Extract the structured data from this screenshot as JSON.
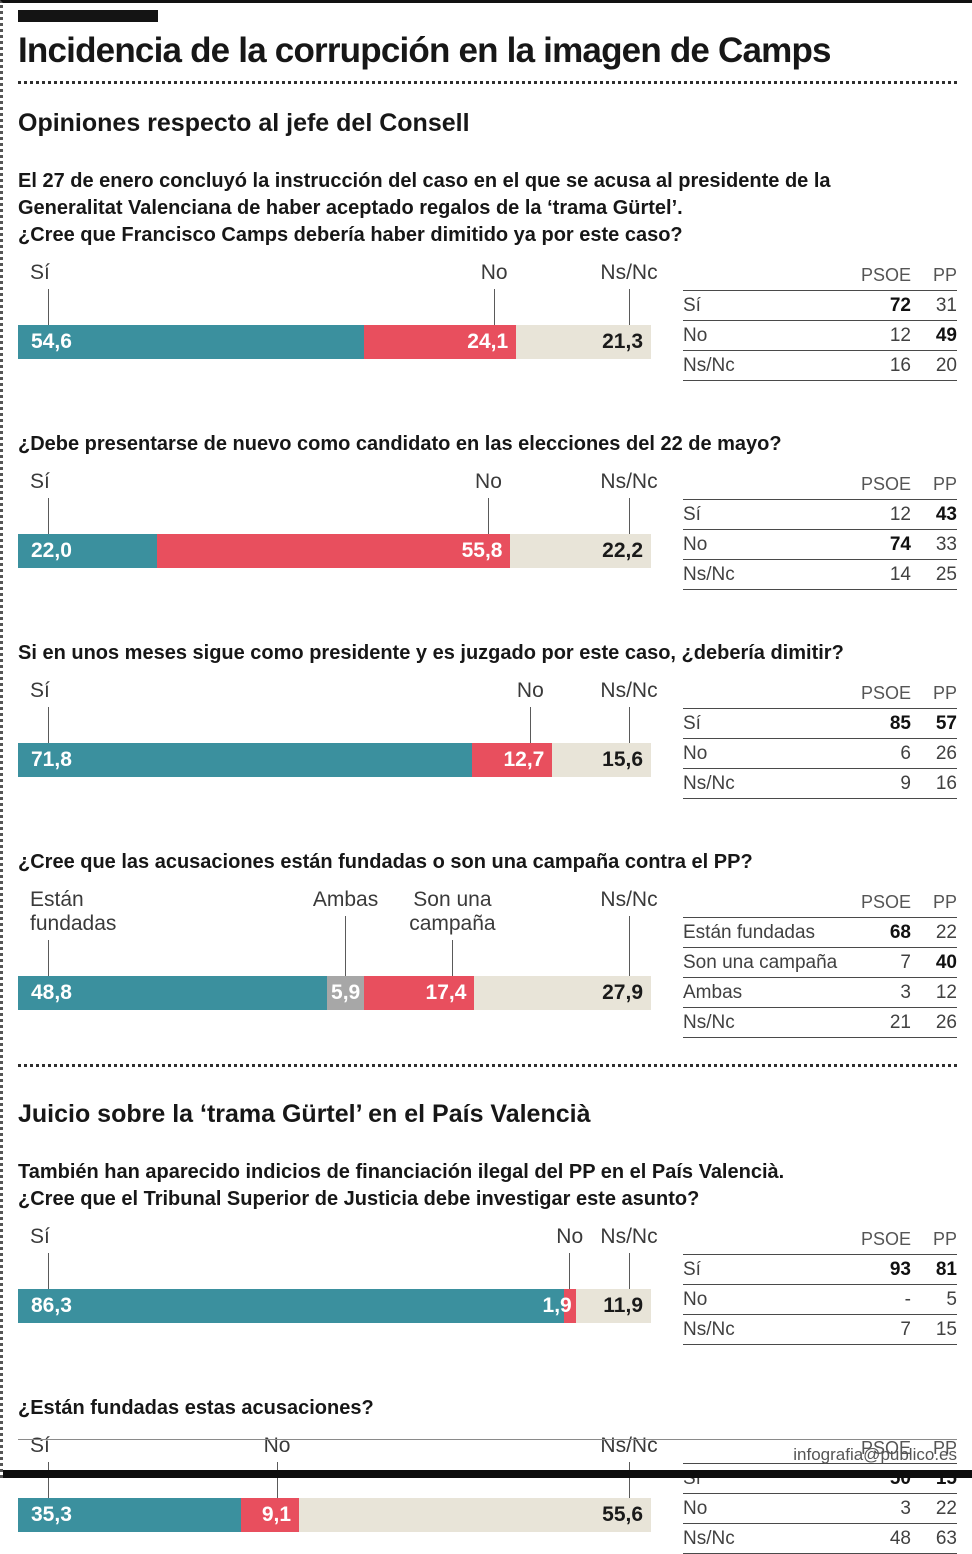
{
  "page": {
    "title": "Incidencia de la corrupción en la imagen de Camps",
    "footer": "infografia@publico.es"
  },
  "colors": {
    "si": "#3b909e",
    "no": "#e84f5e",
    "nsnc": "#e8e4d8",
    "ambas": "#a7a7a7"
  },
  "table_header": {
    "label": "",
    "psoe": "PSOE",
    "pp": "PP"
  },
  "sections": [
    {
      "heading": "Opiniones respecto al jefe del Consell",
      "intro_lines": [
        "El 27 de enero concluyó la instrucción del caso en el que se acusa al presidente de la",
        "Generalitat Valenciana de haber aceptado regalos de la ‘trama Gürtel’.",
        "¿Cree que Francisco Camps debería haber dimitido ya por este caso?"
      ],
      "blocks": [
        {
          "chart": 0
        },
        {
          "chart": 1
        },
        {
          "chart": 2
        },
        {
          "chart": 3
        }
      ]
    },
    {
      "heading": "Juicio sobre la ‘trama Gürtel’ en el País Valencià",
      "intro_lines": [
        "También han aparecido indicios de financiación ilegal del PP en el País Valencià.",
        "¿Cree que el Tribunal Superior de Justicia debe investigar este asunto?"
      ],
      "blocks": [
        {
          "chart": 4
        },
        {
          "chart": 5
        }
      ]
    }
  ],
  "chart_data": [
    {
      "type": "bar",
      "stacked": true,
      "unit": "%",
      "question": null,
      "segments": [
        {
          "label": "Sí",
          "label_lines": [
            "Sí"
          ],
          "value": 54.6,
          "display": "54,6",
          "color": "si"
        },
        {
          "label": "No",
          "label_lines": [
            "No"
          ],
          "value": 24.1,
          "display": "24,1",
          "color": "no"
        },
        {
          "label": "Ns/Nc",
          "label_lines": [
            "Ns/Nc"
          ],
          "value": 21.3,
          "display": "21,3",
          "color": "nsnc"
        }
      ],
      "table": [
        {
          "label": "Sí",
          "psoe": "72",
          "pp": "31",
          "psoe_bold": true,
          "pp_bold": false
        },
        {
          "label": "No",
          "psoe": "12",
          "pp": "49",
          "psoe_bold": false,
          "pp_bold": true
        },
        {
          "label": "Ns/Nc",
          "psoe": "16",
          "pp": "20",
          "psoe_bold": false,
          "pp_bold": false
        }
      ]
    },
    {
      "type": "bar",
      "stacked": true,
      "unit": "%",
      "question": "¿Debe presentarse de nuevo como candidato en las elecciones del 22 de mayo?",
      "segments": [
        {
          "label": "Sí",
          "label_lines": [
            "Sí"
          ],
          "value": 22.0,
          "display": "22,0",
          "color": "si"
        },
        {
          "label": "No",
          "label_lines": [
            "No"
          ],
          "value": 55.8,
          "display": "55,8",
          "color": "no"
        },
        {
          "label": "Ns/Nc",
          "label_lines": [
            "Ns/Nc"
          ],
          "value": 22.2,
          "display": "22,2",
          "color": "nsnc"
        }
      ],
      "table": [
        {
          "label": "Sí",
          "psoe": "12",
          "pp": "43",
          "psoe_bold": false,
          "pp_bold": true
        },
        {
          "label": "No",
          "psoe": "74",
          "pp": "33",
          "psoe_bold": true,
          "pp_bold": false
        },
        {
          "label": "Ns/Nc",
          "psoe": "14",
          "pp": "25",
          "psoe_bold": false,
          "pp_bold": false
        }
      ]
    },
    {
      "type": "bar",
      "stacked": true,
      "unit": "%",
      "question": "Si en unos meses sigue como presidente y es juzgado por este caso, ¿debería dimitir?",
      "segments": [
        {
          "label": "Sí",
          "label_lines": [
            "Sí"
          ],
          "value": 71.8,
          "display": "71,8",
          "color": "si"
        },
        {
          "label": "No",
          "label_lines": [
            "No"
          ],
          "value": 12.7,
          "display": "12,7",
          "color": "no"
        },
        {
          "label": "Ns/Nc",
          "label_lines": [
            "Ns/Nc"
          ],
          "value": 15.6,
          "display": "15,6",
          "color": "nsnc"
        }
      ],
      "table": [
        {
          "label": "Sí",
          "psoe": "85",
          "pp": "57",
          "psoe_bold": true,
          "pp_bold": true
        },
        {
          "label": "No",
          "psoe": "6",
          "pp": "26",
          "psoe_bold": false,
          "pp_bold": false
        },
        {
          "label": "Ns/Nc",
          "psoe": "9",
          "pp": "16",
          "psoe_bold": false,
          "pp_bold": false
        }
      ]
    },
    {
      "type": "bar",
      "stacked": true,
      "unit": "%",
      "question": "¿Cree que las acusaciones están fundadas o son una campaña contra el PP?",
      "segments": [
        {
          "label": "Están fundadas",
          "label_lines": [
            "Están",
            "fundadas"
          ],
          "value": 48.8,
          "display": "48,8",
          "color": "si"
        },
        {
          "label": "Ambas",
          "label_lines": [
            "Ambas"
          ],
          "value": 5.9,
          "display": "5,9",
          "color": "ambas"
        },
        {
          "label": "Son una campaña",
          "label_lines": [
            "Son una",
            "campaña"
          ],
          "value": 17.4,
          "display": "17,4",
          "color": "no"
        },
        {
          "label": "Ns/Nc",
          "label_lines": [
            "Ns/Nc"
          ],
          "value": 27.9,
          "display": "27,9",
          "color": "nsnc"
        }
      ],
      "table": [
        {
          "label": "Están fundadas",
          "psoe": "68",
          "pp": "22",
          "psoe_bold": true,
          "pp_bold": false
        },
        {
          "label": "Son una campaña",
          "psoe": "7",
          "pp": "40",
          "psoe_bold": false,
          "pp_bold": true
        },
        {
          "label": "Ambas",
          "psoe": "3",
          "pp": "12",
          "psoe_bold": false,
          "pp_bold": false
        },
        {
          "label": "Ns/Nc",
          "psoe": "21",
          "pp": "26",
          "psoe_bold": false,
          "pp_bold": false
        }
      ]
    },
    {
      "type": "bar",
      "stacked": true,
      "unit": "%",
      "question": null,
      "segments": [
        {
          "label": "Sí",
          "label_lines": [
            "Sí"
          ],
          "value": 86.3,
          "display": "86,3",
          "color": "si"
        },
        {
          "label": "No",
          "label_lines": [
            "No"
          ],
          "value": 1.9,
          "display": "1,9",
          "color": "no"
        },
        {
          "label": "Ns/Nc",
          "label_lines": [
            "Ns/Nc"
          ],
          "value": 11.9,
          "display": "11,9",
          "color": "nsnc"
        }
      ],
      "table": [
        {
          "label": "Sí",
          "psoe": "93",
          "pp": "81",
          "psoe_bold": true,
          "pp_bold": true
        },
        {
          "label": "No",
          "psoe": "-",
          "pp": "5",
          "psoe_bold": false,
          "pp_bold": false
        },
        {
          "label": "Ns/Nc",
          "psoe": "7",
          "pp": "15",
          "psoe_bold": false,
          "pp_bold": false
        }
      ]
    },
    {
      "type": "bar",
      "stacked": true,
      "unit": "%",
      "question": "¿Están fundadas estas acusaciones?",
      "segments": [
        {
          "label": "Sí",
          "label_lines": [
            "Sí"
          ],
          "value": 35.3,
          "display": "35,3",
          "color": "si"
        },
        {
          "label": "No",
          "label_lines": [
            "No"
          ],
          "value": 9.1,
          "display": "9,1",
          "color": "no"
        },
        {
          "label": "Ns/Nc",
          "label_lines": [
            "Ns/Nc"
          ],
          "value": 55.6,
          "display": "55,6",
          "color": "nsnc"
        }
      ],
      "table": [
        {
          "label": "Sí",
          "psoe": "50",
          "pp": "15",
          "psoe_bold": true,
          "pp_bold": true
        },
        {
          "label": "No",
          "psoe": "3",
          "pp": "22",
          "psoe_bold": false,
          "pp_bold": false
        },
        {
          "label": "Ns/Nc",
          "psoe": "48",
          "pp": "63",
          "psoe_bold": false,
          "pp_bold": false
        }
      ]
    }
  ]
}
